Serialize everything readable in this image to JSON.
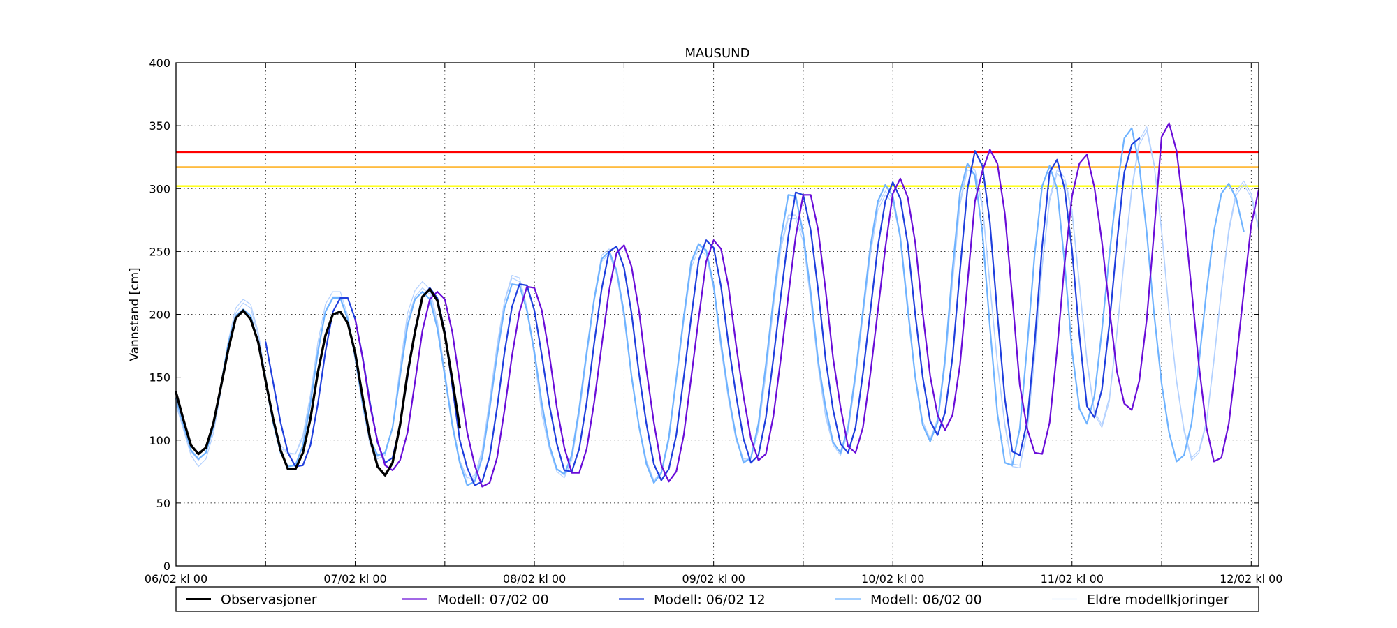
{
  "chart_data": {
    "type": "line",
    "title": "MAUSUND",
    "ylabel": "Vannstand [cm]",
    "xlabel": "",
    "ylim": [
      0,
      400
    ],
    "xlim_hours": [
      0,
      145
    ],
    "grid": true,
    "legend_position": "bottom",
    "x_unit": "hours after 06/02 kl 00",
    "x_ticks": [
      {
        "x": 0,
        "label": "06/02 kl 00"
      },
      {
        "x": 12,
        "label": ""
      },
      {
        "x": 24,
        "label": "07/02 kl 00"
      },
      {
        "x": 36,
        "label": ""
      },
      {
        "x": 48,
        "label": "08/02 kl 00"
      },
      {
        "x": 60,
        "label": ""
      },
      {
        "x": 72,
        "label": "09/02 kl 00"
      },
      {
        "x": 84,
        "label": ""
      },
      {
        "x": 96,
        "label": "10/02 kl 00"
      },
      {
        "x": 108,
        "label": ""
      },
      {
        "x": 120,
        "label": "11/02 kl 00"
      },
      {
        "x": 132,
        "label": ""
      },
      {
        "x": 144,
        "label": "12/02 kl 00"
      }
    ],
    "y_ticks": [
      0,
      50,
      100,
      150,
      200,
      250,
      300,
      350,
      400
    ],
    "thresholds": [
      {
        "value": 329,
        "color": "#ff0000"
      },
      {
        "value": 317,
        "color": "#ffa500"
      },
      {
        "value": 302,
        "color": "#ffff00"
      }
    ],
    "series": [
      {
        "name": "Eldre modellkjoringer",
        "color": "#b3d1ff",
        "width": 1.2,
        "x0": 0,
        "dx": 1,
        "values": [
          128,
          108,
          88,
          79,
          85,
          105,
          138,
          174,
          201,
          209,
          205,
          183,
          148,
          115,
          94,
          89,
          89,
          102,
          132,
          173,
          203,
          214,
          214,
          196,
          163,
          126,
          96,
          87,
          89,
          111,
          158,
          201,
          219,
          226,
          220,
          195,
          155,
          115,
          84,
          70,
          72,
          92,
          132,
          176,
          211,
          231,
          229,
          206,
          171,
          124,
          96,
          77,
          72,
          86,
          122,
          169,
          214,
          247,
          252,
          235,
          200,
          151,
          112,
          84,
          68,
          75,
          101,
          148,
          196,
          240,
          255,
          250,
          222,
          174,
          134,
          102,
          85,
          86,
          110,
          155,
          208,
          255,
          279,
          279,
          262,
          214,
          161,
          120,
          99,
          90,
          109,
          152,
          202,
          251,
          287,
          298,
          292,
          264,
          209,
          152,
          115,
          101,
          117,
          162,
          228,
          290,
          318,
          315,
          288,
          225,
          162,
          113,
          81,
          80,
          108,
          168,
          240,
          293,
          315,
          309,
          283,
          225,
          165,
          123,
          112,
          134,
          186,
          246,
          301,
          338,
          349,
          320,
          268,
          203,
          148,
          109,
          86,
          92,
          115,
          165,
          220,
          268,
          298,
          306,
          296,
          270
        ]
      },
      {
        "name": "Eldre modellkjoringer",
        "color": "#b3d1ff",
        "width": 1.2,
        "x0": 0,
        "dx": 1,
        "values": [
          130,
          110,
          91,
          84,
          90,
          110,
          143,
          179,
          205,
          212,
          208,
          186,
          151,
          118,
          96,
          90,
          89,
          104,
          136,
          178,
          208,
          218,
          218,
          199,
          166,
          128,
          97,
          85,
          88,
          110,
          154,
          196,
          214,
          221,
          216,
          192,
          151,
          112,
          83,
          69,
          70,
          90,
          130,
          174,
          210,
          229,
          226,
          203,
          166,
          120,
          93,
          75,
          70,
          84,
          120,
          166,
          210,
          242,
          248,
          232,
          197,
          149,
          110,
          83,
          66,
          73,
          99,
          146,
          194,
          237,
          252,
          247,
          220,
          172,
          132,
          100,
          84,
          85,
          108,
          152,
          205,
          252,
          276,
          276,
          258,
          211,
          158,
          118,
          96,
          88,
          106,
          148,
          198,
          247,
          283,
          295,
          289,
          261,
          206,
          150,
          113,
          99,
          115,
          159,
          225,
          287,
          315,
          312,
          285,
          222,
          160,
          111,
          79,
          78,
          106,
          165,
          237,
          290,
          312,
          306,
          280,
          222,
          162,
          121,
          110,
          131,
          183,
          243,
          298,
          335,
          346,
          318,
          265,
          200,
          146,
          107,
          84,
          90,
          113,
          162,
          217,
          265,
          295,
          303,
          293,
          267
        ]
      },
      {
        "name": "Modell: 06/02 00",
        "color": "#6fb3ff",
        "width": 2.2,
        "x0": 0,
        "dx": 1,
        "values": [
          133,
          112,
          92,
          85,
          90,
          110,
          143,
          177,
          199,
          204,
          199,
          178,
          146,
          114,
          90,
          79,
          80,
          96,
          129,
          170,
          202,
          213,
          213,
          196,
          166,
          129,
          100,
          88,
          90,
          110,
          151,
          191,
          212,
          218,
          212,
          189,
          151,
          112,
          82,
          64,
          67,
          86,
          125,
          168,
          205,
          224,
          223,
          203,
          170,
          129,
          96,
          77,
          73,
          88,
          125,
          170,
          212,
          244,
          250,
          235,
          201,
          151,
          111,
          81,
          66,
          74,
          102,
          149,
          198,
          242,
          256,
          251,
          223,
          177,
          136,
          103,
          82,
          86,
          113,
          160,
          212,
          260,
          295,
          294,
          264,
          218,
          163,
          126,
          98,
          90,
          110,
          153,
          203,
          254,
          290,
          303,
          294,
          261,
          204,
          150,
          112,
          99,
          114,
          165,
          236,
          297,
          320,
          310,
          265,
          190,
          121,
          82,
          80,
          109,
          175,
          248,
          302,
          318,
          300,
          241,
          171,
          125,
          113,
          135,
          187,
          247,
          300,
          340,
          348,
          319,
          265,
          200,
          145,
          106,
          83,
          88,
          113,
          162,
          218,
          266,
          296,
          304,
          292,
          266
        ]
      },
      {
        "name": "Modell: 06/02 12",
        "color": "#1f3fdd",
        "width": 2.2,
        "x0": 12,
        "dx": 1,
        "values": [
          178,
          146,
          114,
          90,
          79,
          80,
          96,
          129,
          170,
          202,
          213,
          213,
          196,
          166,
          129,
          98,
          82,
          86,
          112,
          150,
          188,
          214,
          221,
          213,
          186,
          143,
          100,
          78,
          64,
          67,
          87,
          126,
          170,
          206,
          224,
          223,
          203,
          167,
          128,
          97,
          76,
          75,
          93,
          130,
          177,
          220,
          250,
          254,
          237,
          201,
          153,
          113,
          81,
          68,
          77,
          104,
          150,
          198,
          243,
          259,
          253,
          222,
          176,
          136,
          101,
          82,
          88,
          118,
          165,
          215,
          262,
          297,
          295,
          267,
          219,
          164,
          124,
          97,
          90,
          110,
          153,
          203,
          254,
          290,
          305,
          292,
          256,
          200,
          150,
          115,
          104,
          122,
          166,
          235,
          300,
          330,
          318,
          273,
          200,
          133,
          91,
          88,
          115,
          178,
          254,
          313,
          323,
          300,
          251,
          183,
          127,
          118,
          140,
          192,
          256,
          313,
          335,
          340
        ]
      },
      {
        "name": "Modell: 07/02 00",
        "color": "#6a0dd8",
        "width": 2.2,
        "x0": 24,
        "dx": 1,
        "values": [
          196,
          165,
          127,
          99,
          80,
          76,
          84,
          106,
          146,
          187,
          212,
          218,
          212,
          186,
          146,
          106,
          80,
          63,
          66,
          86,
          124,
          167,
          202,
          222,
          221,
          203,
          168,
          126,
          94,
          74,
          74,
          93,
          130,
          175,
          219,
          249,
          255,
          238,
          203,
          156,
          114,
          80,
          67,
          75,
          104,
          150,
          197,
          242,
          259,
          252,
          222,
          176,
          135,
          101,
          84,
          89,
          119,
          165,
          215,
          262,
          295,
          295,
          267,
          219,
          165,
          126,
          95,
          90,
          110,
          153,
          203,
          253,
          296,
          308,
          293,
          257,
          201,
          151,
          120,
          108,
          120,
          160,
          225,
          290,
          314,
          331,
          320,
          280,
          214,
          144,
          109,
          90,
          89,
          114,
          172,
          240,
          294,
          320,
          327,
          301,
          258,
          205,
          155,
          129,
          124,
          147,
          196,
          266,
          341,
          352,
          330,
          281,
          220,
          159,
          110,
          83,
          86,
          113,
          163,
          218,
          271,
          299
        ]
      },
      {
        "name": "Observasjoner",
        "color": "#000000",
        "width": 3.4,
        "x0": 0,
        "dx": 1,
        "values": [
          138,
          116,
          96,
          89,
          94,
          113,
          142,
          172,
          197,
          203,
          196,
          178,
          147,
          117,
          92,
          77,
          77,
          90,
          117,
          154,
          183,
          200,
          202,
          193,
          169,
          134,
          101,
          79,
          72,
          82,
          112,
          153,
          186,
          214,
          220,
          211,
          184,
          148,
          110
        ]
      }
    ],
    "legend": [
      {
        "label": "Observasjoner",
        "color": "#000000",
        "width": 3
      },
      {
        "label": "Modell: 07/02 00",
        "color": "#6a0dd8",
        "width": 2.2
      },
      {
        "label": "Modell: 06/02 12",
        "color": "#1f3fdd",
        "width": 2.2
      },
      {
        "label": "Modell: 06/02 00",
        "color": "#6fb3ff",
        "width": 2.2
      },
      {
        "label": "Eldre modellkjoringer",
        "color": "#b3d1ff",
        "width": 1.2
      }
    ]
  }
}
